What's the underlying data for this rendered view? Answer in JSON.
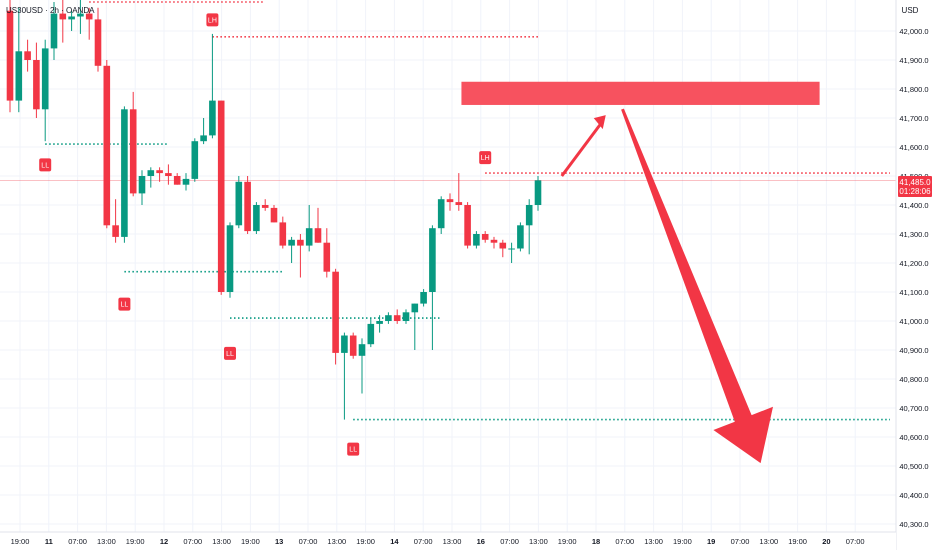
{
  "header": {
    "symbol": "US30USD · 2h · OANDA"
  },
  "colors": {
    "up": "#089981",
    "down": "#f23645",
    "level_red": "#f23645",
    "level_green": "#089981",
    "zone": "#f7525f",
    "arrow": "#f23645",
    "axis_text": "#131722",
    "grid": "#f0f3fa"
  },
  "price_axis": {
    "currency": "USD",
    "labels": [
      "42,000.0",
      "41,900.0",
      "41,800.0",
      "41,700.0",
      "41,600.0",
      "41,500.0",
      "41,400.0",
      "41,300.0",
      "41,200.0",
      "41,100.0",
      "41,000.0",
      "40,900.0",
      "40,800.0",
      "40,700.0",
      "40,600.0",
      "40,500.0",
      "40,400.0",
      "40,300.0"
    ],
    "current_price_label": "41,485.0",
    "countdown_label": "01:28:06"
  },
  "time_axis": {
    "labels": [
      "19:00",
      "11",
      "07:00",
      "13:00",
      "19:00",
      "12",
      "07:00",
      "13:00",
      "19:00",
      "13",
      "07:00",
      "13:00",
      "19:00",
      "14",
      "07:00",
      "13:00",
      "16",
      "07:00",
      "13:00",
      "19:00",
      "18",
      "07:00",
      "13:00",
      "19:00",
      "19",
      "07:00",
      "13:00",
      "19:00",
      "20",
      "07:00"
    ]
  },
  "structure_labels": [
    {
      "text": "LH",
      "kind": "lower-high",
      "price": 42040
    },
    {
      "text": "LL",
      "kind": "lower-low",
      "price": 41540
    },
    {
      "text": "LL",
      "kind": "lower-low",
      "price": 41060
    },
    {
      "text": "LL",
      "kind": "lower-low",
      "price": 40890
    },
    {
      "text": "LL",
      "kind": "lower-low",
      "price": 40560
    },
    {
      "text": "LH",
      "kind": "lower-high",
      "price": 41565
    }
  ],
  "chart_data": {
    "type": "candlestick",
    "title": "US30USD · 2h · OANDA",
    "ylim": [
      40270,
      42110
    ],
    "series": [
      {
        "open": 42070,
        "high": 42110,
        "low": 41720,
        "close": 41760
      },
      {
        "open": 41760,
        "high": 42080,
        "low": 41720,
        "close": 41930
      },
      {
        "open": 41930,
        "high": 41970,
        "low": 41860,
        "close": 41900
      },
      {
        "open": 41900,
        "high": 41960,
        "low": 41700,
        "close": 41730
      },
      {
        "open": 41730,
        "high": 41970,
        "low": 41620,
        "close": 41940
      },
      {
        "open": 41940,
        "high": 42100,
        "low": 41900,
        "close": 42060
      },
      {
        "open": 42060,
        "high": 42110,
        "low": 41960,
        "close": 42040
      },
      {
        "open": 42040,
        "high": 42070,
        "low": 42000,
        "close": 42050
      },
      {
        "open": 42050,
        "high": 42110,
        "low": 41990,
        "close": 42060
      },
      {
        "open": 42060,
        "high": 42080,
        "low": 41970,
        "close": 42040
      },
      {
        "open": 42040,
        "high": 42080,
        "low": 41860,
        "close": 41880
      },
      {
        "open": 41880,
        "high": 41900,
        "low": 41320,
        "close": 41330
      },
      {
        "open": 41330,
        "high": 41420,
        "low": 41270,
        "close": 41290
      },
      {
        "open": 41290,
        "high": 41740,
        "low": 41270,
        "close": 41730
      },
      {
        "open": 41730,
        "high": 41790,
        "low": 41430,
        "close": 41440
      },
      {
        "open": 41440,
        "high": 41520,
        "low": 41400,
        "close": 41500
      },
      {
        "open": 41500,
        "high": 41530,
        "low": 41460,
        "close": 41520
      },
      {
        "open": 41520,
        "high": 41530,
        "low": 41480,
        "close": 41510
      },
      {
        "open": 41510,
        "high": 41540,
        "low": 41470,
        "close": 41500
      },
      {
        "open": 41500,
        "high": 41510,
        "low": 41470,
        "close": 41470
      },
      {
        "open": 41470,
        "high": 41510,
        "low": 41450,
        "close": 41490
      },
      {
        "open": 41490,
        "high": 41630,
        "low": 41480,
        "close": 41620
      },
      {
        "open": 41620,
        "high": 41700,
        "low": 41610,
        "close": 41640
      },
      {
        "open": 41640,
        "high": 41990,
        "low": 41630,
        "close": 41760
      },
      {
        "open": 41760,
        "high": 41760,
        "low": 41090,
        "close": 41100
      },
      {
        "open": 41100,
        "high": 41340,
        "low": 41080,
        "close": 41330
      },
      {
        "open": 41330,
        "high": 41500,
        "low": 41320,
        "close": 41480
      },
      {
        "open": 41480,
        "high": 41500,
        "low": 41300,
        "close": 41310
      },
      {
        "open": 41310,
        "high": 41410,
        "low": 41300,
        "close": 41400
      },
      {
        "open": 41400,
        "high": 41420,
        "low": 41380,
        "close": 41390
      },
      {
        "open": 41390,
        "high": 41400,
        "low": 41340,
        "close": 41340
      },
      {
        "open": 41340,
        "high": 41360,
        "low": 41250,
        "close": 41260
      },
      {
        "open": 41260,
        "high": 41290,
        "low": 41200,
        "close": 41280
      },
      {
        "open": 41280,
        "high": 41300,
        "low": 41150,
        "close": 41260
      },
      {
        "open": 41260,
        "high": 41400,
        "low": 41240,
        "close": 41320
      },
      {
        "open": 41320,
        "high": 41390,
        "low": 41270,
        "close": 41270
      },
      {
        "open": 41270,
        "high": 41320,
        "low": 41150,
        "close": 41170
      },
      {
        "open": 41170,
        "high": 41180,
        "low": 40850,
        "close": 40890
      },
      {
        "open": 40890,
        "high": 40960,
        "low": 40660,
        "close": 40950
      },
      {
        "open": 40950,
        "high": 40960,
        "low": 40870,
        "close": 40880
      },
      {
        "open": 40880,
        "high": 40940,
        "low": 40750,
        "close": 40920
      },
      {
        "open": 40920,
        "high": 41010,
        "low": 40910,
        "close": 40990
      },
      {
        "open": 40990,
        "high": 41020,
        "low": 40960,
        "close": 41000
      },
      {
        "open": 41000,
        "high": 41030,
        "low": 40990,
        "close": 41020
      },
      {
        "open": 41020,
        "high": 41040,
        "low": 40990,
        "close": 41000
      },
      {
        "open": 41000,
        "high": 41040,
        "low": 40990,
        "close": 41030
      },
      {
        "open": 41030,
        "high": 41060,
        "low": 40900,
        "close": 41060
      },
      {
        "open": 41060,
        "high": 41110,
        "low": 41050,
        "close": 41100
      },
      {
        "open": 41100,
        "high": 41330,
        "low": 40900,
        "close": 41320
      },
      {
        "open": 41320,
        "high": 41430,
        "low": 41300,
        "close": 41420
      },
      {
        "open": 41420,
        "high": 41440,
        "low": 41380,
        "close": 41410
      },
      {
        "open": 41410,
        "high": 41510,
        "low": 41380,
        "close": 41400
      },
      {
        "open": 41400,
        "high": 41410,
        "low": 41250,
        "close": 41260
      },
      {
        "open": 41260,
        "high": 41310,
        "low": 41250,
        "close": 41300
      },
      {
        "open": 41300,
        "high": 41310,
        "low": 41270,
        "close": 41280
      },
      {
        "open": 41280,
        "high": 41290,
        "low": 41250,
        "close": 41270
      },
      {
        "open": 41270,
        "high": 41280,
        "low": 41220,
        "close": 41250
      },
      {
        "open": 41250,
        "high": 41270,
        "low": 41200,
        "close": 41250
      },
      {
        "open": 41250,
        "high": 41340,
        "low": 41240,
        "close": 41330
      },
      {
        "open": 41330,
        "high": 41420,
        "low": 41230,
        "close": 41400
      },
      {
        "open": 41400,
        "high": 41500,
        "low": 41380,
        "close": 41485
      }
    ],
    "levels": [
      {
        "price": 42100,
        "kind": "resistance",
        "style": "dotted",
        "color": "red"
      },
      {
        "price": 41980,
        "kind": "resistance",
        "style": "dotted",
        "color": "red"
      },
      {
        "price": 41610,
        "kind": "support",
        "style": "dotted",
        "color": "green"
      },
      {
        "price": 41170,
        "kind": "support",
        "style": "dotted",
        "color": "green"
      },
      {
        "price": 41010,
        "kind": "support",
        "style": "dotted",
        "color": "green"
      },
      {
        "price": 41510,
        "kind": "resistance",
        "style": "dotted",
        "color": "red"
      },
      {
        "price": 40660,
        "kind": "target",
        "style": "dotted",
        "color": "green"
      }
    ],
    "zone": {
      "price_top": 41825,
      "price_bottom": 41745,
      "color": "red"
    },
    "projection": {
      "points": [
        41500,
        41710,
        40510
      ],
      "direction": "up then down"
    },
    "current_price": 41485
  }
}
